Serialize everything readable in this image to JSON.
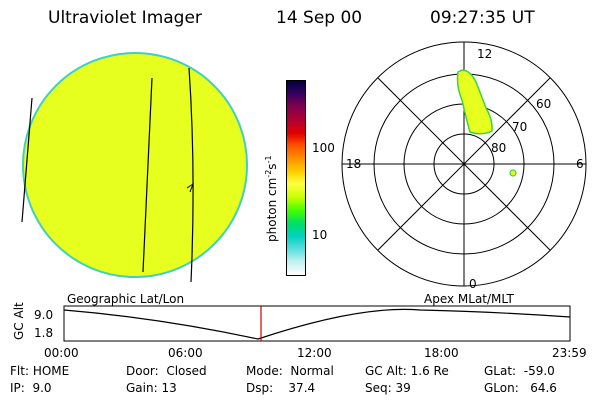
{
  "header": {
    "title": "Ultraviolet Imager",
    "date": "14 Sep 00",
    "time": "09:27:35 UT"
  },
  "colorbar": {
    "unit_label": "photon cm",
    "unit_sup1": "-2",
    "unit_mid": "s",
    "unit_sup2": "-1",
    "ticks": [
      "100",
      "10"
    ],
    "colors": [
      "#000040",
      "#3a0060",
      "#800050",
      "#b00030",
      "#e00000",
      "#ff5000",
      "#ff9000",
      "#ffd000",
      "#ffff40",
      "#c8ff00",
      "#40ff00",
      "#00e060",
      "#00d0c0",
      "#60e0e0",
      "#c0f0f0",
      "#ffffff"
    ]
  },
  "polar": {
    "mlt_labels": {
      "top": "12",
      "left": "18",
      "right": "6",
      "bottom": "0"
    },
    "lat_labels": [
      "60",
      "70",
      "80"
    ]
  },
  "timeline": {
    "left_label": "Geographic Lat/Lon",
    "right_label": "Apex  MLat/MLT",
    "axis_label": "GC Alt",
    "y_ticks": [
      "9.0",
      "1.8"
    ],
    "x_ticks": [
      "00:00",
      "06:00",
      "12:00",
      "18:00",
      "23:59"
    ]
  },
  "info": {
    "row1": [
      {
        "key": "Flt:",
        "value": "HOME"
      },
      {
        "key": "Door:",
        "value": "Closed"
      },
      {
        "key": "Mode:",
        "value": "Normal"
      },
      {
        "key": "GC Alt:",
        "value": "1.6 Re"
      },
      {
        "key": "GLat:",
        "value": "-59.0"
      }
    ],
    "row2": [
      {
        "key": "IP:",
        "value": "9.0"
      },
      {
        "key": "Gain:",
        "value": "13"
      },
      {
        "key": "Dsp:",
        "value": "37.4"
      },
      {
        "key": "Seq:",
        "value": "39"
      },
      {
        "key": "GLon:",
        "value": "64.6"
      }
    ]
  }
}
